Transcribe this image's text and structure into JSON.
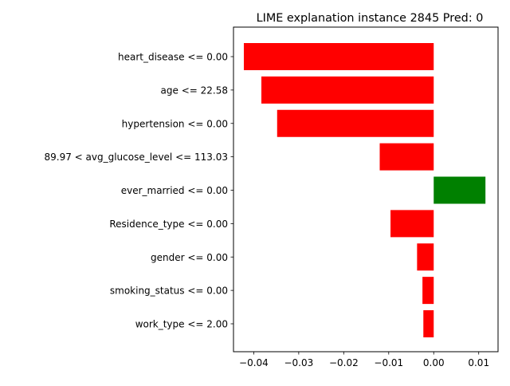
{
  "chart_data": {
    "type": "bar",
    "orientation": "horizontal",
    "title": "LIME explanation instance 2845 Pred: 0",
    "xlabel": "",
    "ylabel": "",
    "xlim": [
      -0.0445,
      0.0143
    ],
    "xticks": [
      -0.04,
      -0.03,
      -0.02,
      -0.01,
      0.0,
      0.01
    ],
    "xtick_labels": [
      "−0.04",
      "−0.03",
      "−0.02",
      "−0.01",
      "0.00",
      "0.01"
    ],
    "grid": false,
    "bars": [
      {
        "label": "heart_disease <= 0.00",
        "value": -0.0422,
        "color": "#ff0000"
      },
      {
        "label": "age <= 22.58",
        "value": -0.0383,
        "color": "#ff0000"
      },
      {
        "label": "hypertension <= 0.00",
        "value": -0.0348,
        "color": "#ff0000"
      },
      {
        "label": "89.97 < avg_glucose_level <= 113.03",
        "value": -0.012,
        "color": "#ff0000"
      },
      {
        "label": "ever_married <= 0.00",
        "value": 0.0115,
        "color": "#008000"
      },
      {
        "label": "Residence_type <= 0.00",
        "value": -0.0096,
        "color": "#ff0000"
      },
      {
        "label": "gender <= 0.00",
        "value": -0.0037,
        "color": "#ff0000"
      },
      {
        "label": "smoking_status <= 0.00",
        "value": -0.0025,
        "color": "#ff0000"
      },
      {
        "label": "work_type <= 2.00",
        "value": -0.0023,
        "color": "#ff0000"
      }
    ]
  }
}
